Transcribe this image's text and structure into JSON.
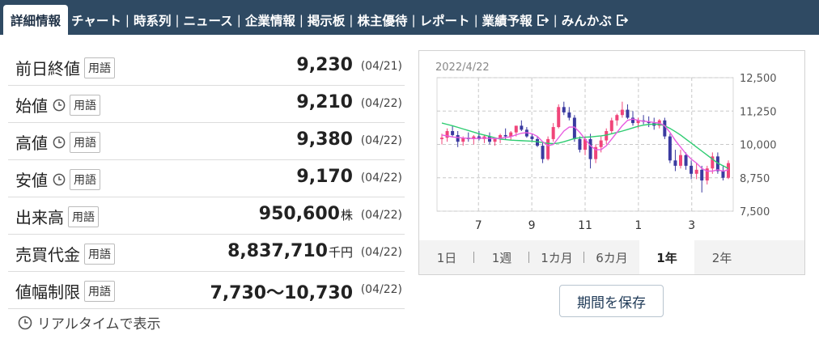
{
  "nav": {
    "tabs": [
      {
        "label": "詳細情報",
        "active": true
      },
      {
        "label": "チャート"
      },
      {
        "label": "時系列"
      },
      {
        "label": "ニュース"
      },
      {
        "label": "企業情報"
      },
      {
        "label": "掲示板"
      },
      {
        "label": "株主優待"
      },
      {
        "label": "レポート"
      },
      {
        "label": "業績予報",
        "external": true
      },
      {
        "label": "みんかぶ",
        "external": true
      }
    ]
  },
  "rows": [
    {
      "label": "前日終値",
      "clock": false,
      "term": "用語",
      "value": "9,230",
      "unit": "",
      "date": "(04/21)"
    },
    {
      "label": "始値",
      "clock": true,
      "term": "用語",
      "value": "9,210",
      "unit": "",
      "date": "(04/22)"
    },
    {
      "label": "高値",
      "clock": true,
      "term": "用語",
      "value": "9,380",
      "unit": "",
      "date": "(04/22)"
    },
    {
      "label": "安値",
      "clock": true,
      "term": "用語",
      "value": "9,170",
      "unit": "",
      "date": "(04/22)"
    },
    {
      "label": "出来高",
      "clock": false,
      "term": "用語",
      "value": "950,600",
      "unit": "株",
      "date": "(04/22)"
    },
    {
      "label": "売買代金",
      "clock": false,
      "term": "用語",
      "value": "8,837,710",
      "unit": "千円",
      "date": "(04/22)"
    },
    {
      "label": "値幅制限",
      "clock": false,
      "term": "用語",
      "value": "7,730〜10,730",
      "unit": "",
      "date": "(04/22)"
    }
  ],
  "realtime_label": "リアルタイムで表示",
  "chart_data": {
    "type": "candlestick",
    "title": "2022/4/22",
    "ylim": [
      7500,
      12500
    ],
    "y_ticks": [
      "12,500",
      "11,250",
      "10,000",
      "8,750",
      "7,500"
    ],
    "y_tick_values": [
      12500,
      11250,
      10000,
      8750,
      7500
    ],
    "x_ticks": [
      "7",
      "9",
      "11",
      "1",
      "3"
    ],
    "grid": true,
    "colors": {
      "up": "#f0457a",
      "down": "#3a3aa0",
      "ma_short": "#e85ce0",
      "ma_long": "#2ecc71",
      "grid": "#c8c8c8"
    },
    "candles": [
      [
        10200,
        10400,
        10000,
        10250
      ],
      [
        10250,
        10600,
        10100,
        10500
      ],
      [
        10500,
        10700,
        10300,
        10350
      ],
      [
        10350,
        10500,
        9900,
        10100
      ],
      [
        10100,
        10300,
        9950,
        10250
      ],
      [
        10250,
        10450,
        10100,
        10200
      ],
      [
        10200,
        10350,
        10000,
        10300
      ],
      [
        10300,
        10500,
        10150,
        10200
      ],
      [
        10200,
        10350,
        10050,
        10300
      ],
      [
        10300,
        10450,
        10000,
        10100
      ],
      [
        10100,
        10250,
        9950,
        10200
      ],
      [
        10200,
        10400,
        10050,
        10350
      ],
      [
        10350,
        10600,
        10200,
        10300
      ],
      [
        10300,
        10500,
        10150,
        10450
      ],
      [
        10450,
        10700,
        10300,
        10700
      ],
      [
        10700,
        10900,
        10500,
        10550
      ],
      [
        10550,
        10650,
        10250,
        10300
      ],
      [
        10300,
        10400,
        10100,
        10200
      ],
      [
        10200,
        10300,
        9900,
        9950
      ],
      [
        9950,
        10100,
        9300,
        9450
      ],
      [
        9450,
        10300,
        9400,
        10200
      ],
      [
        10200,
        10800,
        10100,
        10650
      ],
      [
        10650,
        11500,
        10600,
        11400
      ],
      [
        11400,
        11600,
        11100,
        11200
      ],
      [
        11200,
        11400,
        10900,
        11000
      ],
      [
        11000,
        11100,
        10100,
        10200
      ],
      [
        10200,
        10300,
        9700,
        9800
      ],
      [
        9800,
        10300,
        9600,
        10200
      ],
      [
        10200,
        10400,
        9100,
        9450
      ],
      [
        9450,
        10000,
        9300,
        9900
      ],
      [
        9900,
        10300,
        9700,
        10150
      ],
      [
        10150,
        10600,
        10000,
        10500
      ],
      [
        10500,
        11000,
        10400,
        10900
      ],
      [
        10900,
        11150,
        10700,
        11100
      ],
      [
        11100,
        11600,
        11000,
        11300
      ],
      [
        11300,
        11500,
        10950,
        11000
      ],
      [
        11000,
        11250,
        10700,
        10800
      ],
      [
        10800,
        11000,
        10600,
        10900
      ],
      [
        10900,
        11100,
        10750,
        10850
      ],
      [
        10850,
        11050,
        10650,
        10800
      ],
      [
        10800,
        11000,
        10550,
        10700
      ],
      [
        10700,
        10950,
        10600,
        10900
      ],
      [
        10900,
        11000,
        10200,
        10300
      ],
      [
        10300,
        10400,
        9300,
        9400
      ],
      [
        9400,
        9800,
        9000,
        9200
      ],
      [
        9200,
        9800,
        9100,
        9600
      ],
      [
        9600,
        9700,
        9050,
        9200
      ],
      [
        9200,
        9400,
        8700,
        8900
      ],
      [
        8900,
        9300,
        8700,
        9050
      ],
      [
        9050,
        9200,
        8200,
        8650
      ],
      [
        8650,
        9200,
        8500,
        9100
      ],
      [
        9100,
        9700,
        8900,
        9550
      ],
      [
        9550,
        9700,
        8900,
        9000
      ],
      [
        9000,
        9200,
        8650,
        8750
      ],
      [
        8750,
        9400,
        8700,
        9300
      ]
    ],
    "ma_short": [
      10350,
      10320,
      10280,
      10260,
      10240,
      10230,
      10220,
      10230,
      10240,
      10230,
      10220,
      10230,
      10260,
      10290,
      10360,
      10420,
      10440,
      10400,
      10300,
      10100,
      9950,
      10000,
      10250,
      10500,
      10650,
      10650,
      10450,
      10200,
      9950,
      9800,
      9800,
      9950,
      10200,
      10450,
      10700,
      10900,
      10950,
      10900,
      10870,
      10850,
      10820,
      10800,
      10700,
      10450,
      10150,
      9900,
      9650,
      9450,
      9300,
      9100,
      9000,
      9000,
      9050,
      9000,
      9050
    ],
    "ma_long": [
      10800,
      10750,
      10700,
      10640,
      10580,
      10520,
      10460,
      10400,
      10350,
      10300,
      10250,
      10200,
      10180,
      10160,
      10150,
      10140,
      10130,
      10120,
      10100,
      10070,
      10040,
      10030,
      10050,
      10100,
      10160,
      10220,
      10250,
      10270,
      10280,
      10300,
      10320,
      10350,
      10400,
      10450,
      10500,
      10560,
      10620,
      10680,
      10720,
      10750,
      10760,
      10750,
      10700,
      10600,
      10480,
      10350,
      10200,
      10050,
      9900,
      9750,
      9600,
      9450,
      9300,
      9200,
      9100
    ]
  },
  "periods": [
    {
      "label": "1日"
    },
    {
      "label": "1週"
    },
    {
      "label": "1カ月"
    },
    {
      "label": "6カ月"
    },
    {
      "label": "1年",
      "active": true
    },
    {
      "label": "2年"
    }
  ],
  "save_button": "期間を保存"
}
